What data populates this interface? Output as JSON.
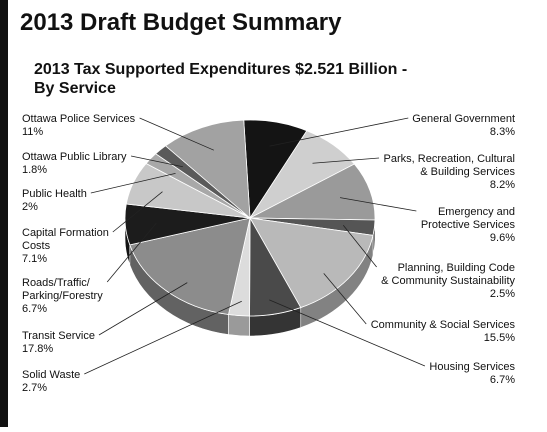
{
  "chart_data": {
    "type": "pie",
    "title": "2013 Draft Budget Summary",
    "subtitle": "2013 Tax Supported Expenditures $2.521 Billion -\nBy Service",
    "categories": [
      "General Government",
      "Parks, Recreation, Cultural\n& Building Services",
      "Emergency and\nProtective Services",
      "Planning, Building Code\n& Community Sustainability",
      "Community & Social Services",
      "Housing Services",
      "Solid Waste",
      "Transit Service",
      "Roads/Traffic/\nParking/Forestry",
      "Capital Formation\nCosts",
      "Public Health",
      "Ottawa Public Library",
      "Ottawa Police Services"
    ],
    "values": [
      8.3,
      8.2,
      9.6,
      2.5,
      15.5,
      6.7,
      2.7,
      17.8,
      6.7,
      7.1,
      2,
      1.8,
      11
    ],
    "value_labels": [
      "8.3%",
      "8.2%",
      "9.6%",
      "2.5%",
      "15.5%",
      "6.7%",
      "2.7%",
      "17.8%",
      "6.7%",
      "7.1%",
      "2%",
      "1.8%",
      "11%"
    ],
    "colors": [
      "#141414",
      "#cfcfcf",
      "#9a9a9a",
      "#555555",
      "#b9b9b9",
      "#4a4a4a",
      "#dcdcdc",
      "#8c8c8c",
      "#1c1c1c",
      "#c8c8c8",
      "#a8a8a8",
      "#5a5a5a",
      "#a2a2a2"
    ]
  }
}
